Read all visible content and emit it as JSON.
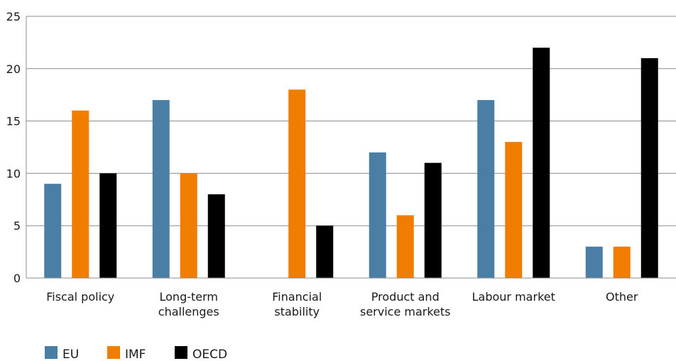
{
  "chart_data": {
    "type": "bar",
    "categories": [
      [
        "Fiscal policy"
      ],
      [
        "Long-term",
        "challenges"
      ],
      [
        "Financial",
        "stability"
      ],
      [
        "Product and",
        "service markets"
      ],
      [
        "Labour market"
      ],
      [
        "Other"
      ]
    ],
    "series": [
      {
        "name": "EU",
        "color": "#4a7ea5",
        "values": [
          9,
          17,
          0,
          12,
          17,
          3
        ]
      },
      {
        "name": "IMF",
        "color": "#f07c00",
        "values": [
          16,
          10,
          18,
          6,
          13,
          3
        ]
      },
      {
        "name": "OECD",
        "color": "#000000",
        "values": [
          10,
          8,
          5,
          11,
          22,
          21
        ]
      }
    ],
    "ylim": [
      0,
      25
    ],
    "yticks": [
      0,
      5,
      10,
      15,
      20,
      25
    ],
    "grid": true,
    "legend": "bottom-left"
  }
}
